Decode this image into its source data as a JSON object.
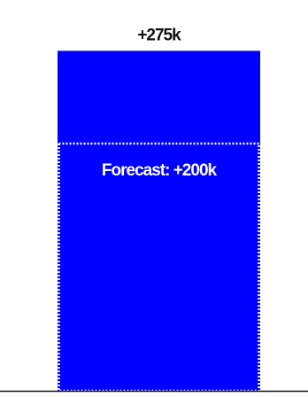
{
  "chart_data": {
    "type": "bar",
    "categories": [
      ""
    ],
    "values": [
      275
    ],
    "forecast": 200,
    "value_label": "+275k",
    "forecast_label": "Forecast: +200k",
    "ylim": [
      0,
      305
    ],
    "unit": "k",
    "colors": {
      "bar": "#0000ff",
      "forecast_outline": "#ffffff",
      "text_dark": "#111111",
      "text_light": "#ffffff",
      "axis": "#111111"
    }
  }
}
